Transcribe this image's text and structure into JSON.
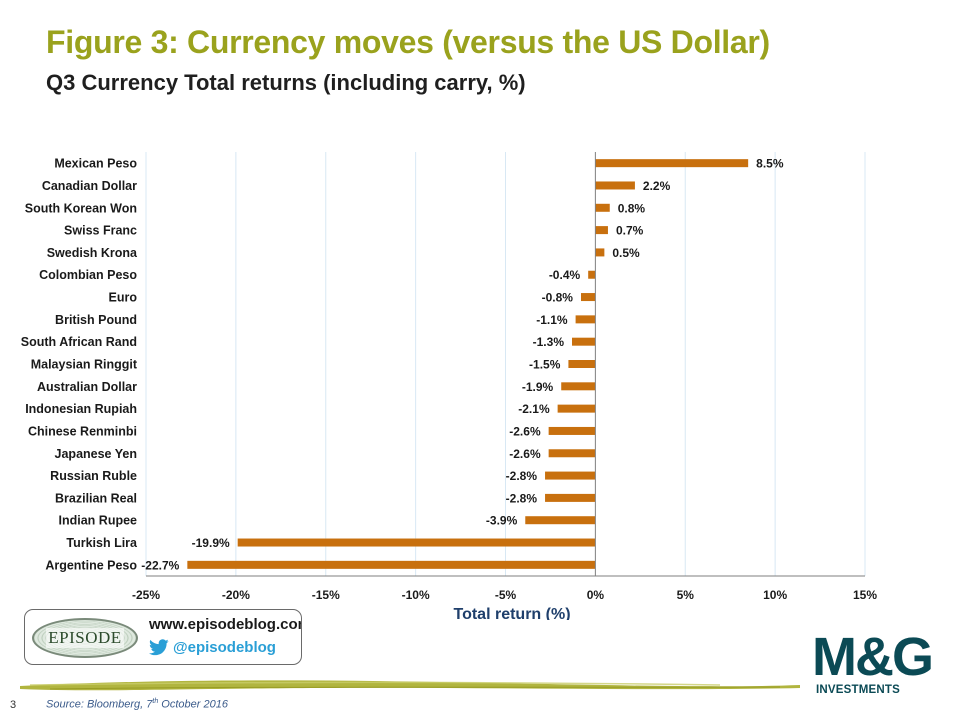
{
  "header": {
    "title": "Figure 3: Currency moves (versus the US Dollar)",
    "subtitle": "Q3 Currency Total returns (including carry, %)"
  },
  "chart_data": {
    "type": "bar",
    "orientation": "horizontal",
    "categories": [
      "Mexican Peso",
      "Canadian Dollar",
      "South Korean Won",
      "Swiss Franc",
      "Swedish Krona",
      "Colombian Peso",
      "Euro",
      "British Pound",
      "South African Rand",
      "Malaysian Ringgit",
      "Australian Dollar",
      "Indonesian Rupiah",
      "Chinese Renminbi",
      "Japanese Yen",
      "Russian Ruble",
      "Brazilian Real",
      "Indian Rupee",
      "Turkish Lira",
      "Argentine Peso"
    ],
    "values": [
      8.5,
      2.2,
      0.8,
      0.7,
      0.5,
      -0.4,
      -0.8,
      -1.1,
      -1.3,
      -1.5,
      -1.9,
      -2.1,
      -2.6,
      -2.6,
      -2.8,
      -2.8,
      -3.9,
      -19.9,
      -22.7
    ],
    "data_labels": [
      "8.5%",
      "2.2%",
      "0.8%",
      "0.7%",
      "0.5%",
      "-0.4%",
      "-0.8%",
      "-1.1%",
      "-1.3%",
      "-1.5%",
      "-1.9%",
      "-2.1%",
      "-2.6%",
      "-2.6%",
      "-2.8%",
      "-2.8%",
      "-3.9%",
      "-19.9%",
      "-22.7%"
    ],
    "xlabel": "Total return (%)",
    "ylabel": "",
    "xlim": [
      -25,
      15
    ],
    "xticks": [
      -25,
      -20,
      -15,
      -10,
      -5,
      0,
      5,
      10,
      15
    ],
    "xtick_labels": [
      "-25%",
      "-20%",
      "-15%",
      "-10%",
      "-5%",
      "0%",
      "5%",
      "10%",
      "15%"
    ],
    "bar_color": "#c8700e",
    "grid": "vertical",
    "grid_color": "#d8e8f4"
  },
  "badge": {
    "logo_text": "EPISODE",
    "url": "www.episodeblog.com",
    "twitter_handle": "@episodeblog"
  },
  "brand": {
    "logo": "M&G",
    "sub": "INVESTMENTS",
    "color": "#0b4a55"
  },
  "footer": {
    "page_number": "3",
    "source_prefix": "Source: Bloomberg, 7",
    "source_sup": "th",
    "source_suffix": " October 2016"
  },
  "accent_color": "#9aa21d"
}
